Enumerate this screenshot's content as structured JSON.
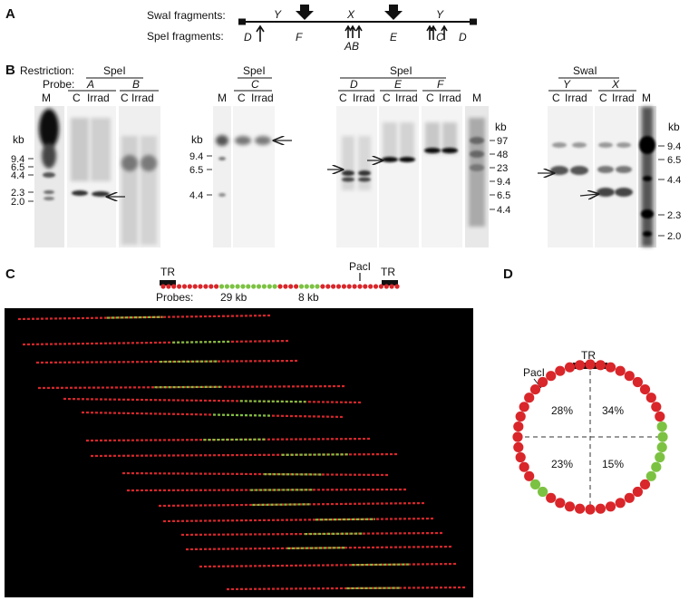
{
  "panels": {
    "A": {
      "letter": "A",
      "swai_label": "SwaI fragments:",
      "spei_label": "SpeI fragments:",
      "swai_fragments": [
        "Y",
        "X",
        "Y"
      ],
      "spei_fragments": [
        "D",
        "F",
        "AB",
        "E",
        "C",
        "D"
      ]
    },
    "B": {
      "letter": "B",
      "restriction_label": "Restriction:",
      "probe_label": "Probe:",
      "blot1": {
        "enzyme": "SpeI",
        "probes": [
          "A",
          "B"
        ],
        "lane_labels": [
          "M",
          "C",
          "Irrad",
          "C",
          "Irrad"
        ],
        "kb_label": "kb",
        "markers": [
          "9.4",
          "6.5",
          "4.4",
          "2.3",
          "2.0"
        ]
      },
      "blot2": {
        "enzyme": "SpeI",
        "probe": "C",
        "lane_labels": [
          "M",
          "C",
          "Irrad"
        ],
        "kb_label": "kb",
        "markers": [
          "9.4",
          "6.5",
          "4.4"
        ]
      },
      "blot3": {
        "enzyme": "SpeI",
        "probes": [
          "D",
          "E",
          "F"
        ],
        "lane_labels": [
          "C",
          "Irrad",
          "C",
          "Irrad",
          "C",
          "Irrad",
          "M"
        ],
        "kb_label": "kb",
        "markers": [
          "97",
          "48",
          "23",
          "9.4",
          "6.5",
          "4.4"
        ]
      },
      "blot4": {
        "enzyme": "SwaI",
        "probes": [
          "Y",
          "X"
        ],
        "lane_labels": [
          "C",
          "Irrad",
          "C",
          "Irrad",
          "M"
        ],
        "kb_label": "kb",
        "markers": [
          "9.4",
          "6.5",
          "4.4",
          "2.3",
          "2.0"
        ]
      }
    },
    "C": {
      "letter": "C",
      "tr_label": "TR",
      "paci_label": "PacI",
      "probes_label": "Probes:",
      "probe_29": "29 kb",
      "probe_8": "8 kb"
    },
    "D": {
      "letter": "D",
      "tr_label": "TR",
      "paci_label": "PacI",
      "quadrants": [
        "28%",
        "34%",
        "23%",
        "15%"
      ]
    }
  },
  "colors": {
    "red": "#d9262a",
    "green": "#7cc242",
    "black": "#000000"
  }
}
